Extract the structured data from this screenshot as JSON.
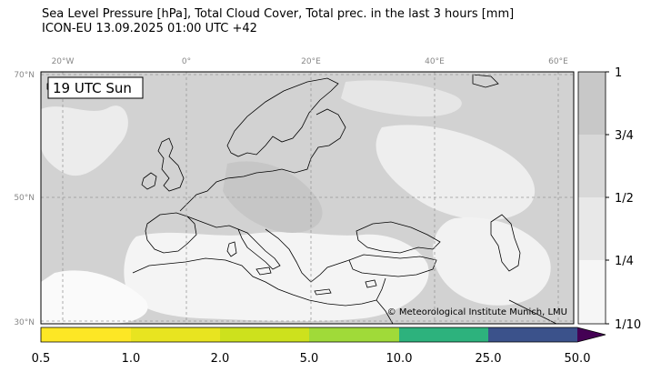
{
  "header": {
    "title_line1": "Sea Level Pressure [hPa], Total Cloud Cover, Total prec. in the last 3 hours [mm]",
    "title_line2": "ICON-EU 13.09.2025 01:00 UTC +42"
  },
  "map": {
    "time_label": "19 UTC Sun",
    "copyright": "© Meteorological Institute Munich, LMU",
    "lon_labels": [
      "20°W",
      "0°",
      "20°E",
      "40°E",
      "60°E"
    ],
    "lat_labels": [
      "70°N",
      "50°N",
      "30°N"
    ]
  },
  "cloud_colorbar": {
    "labels": [
      "1",
      "3/4",
      "1/2",
      "1/4",
      "1/10"
    ],
    "colors": [
      "#c8c8c8",
      "#d8d8d8",
      "#e8e8e8",
      "#f6f6f6"
    ]
  },
  "precip_colorbar": {
    "labels": [
      "0.5",
      "1.0",
      "2.0",
      "5.0",
      "10.0",
      "25.0",
      "50.0"
    ],
    "colors": [
      "#fde725",
      "#e8e420",
      "#cde11d",
      "#a0da39",
      "#2db27d",
      "#3b528b",
      "#440154"
    ]
  }
}
